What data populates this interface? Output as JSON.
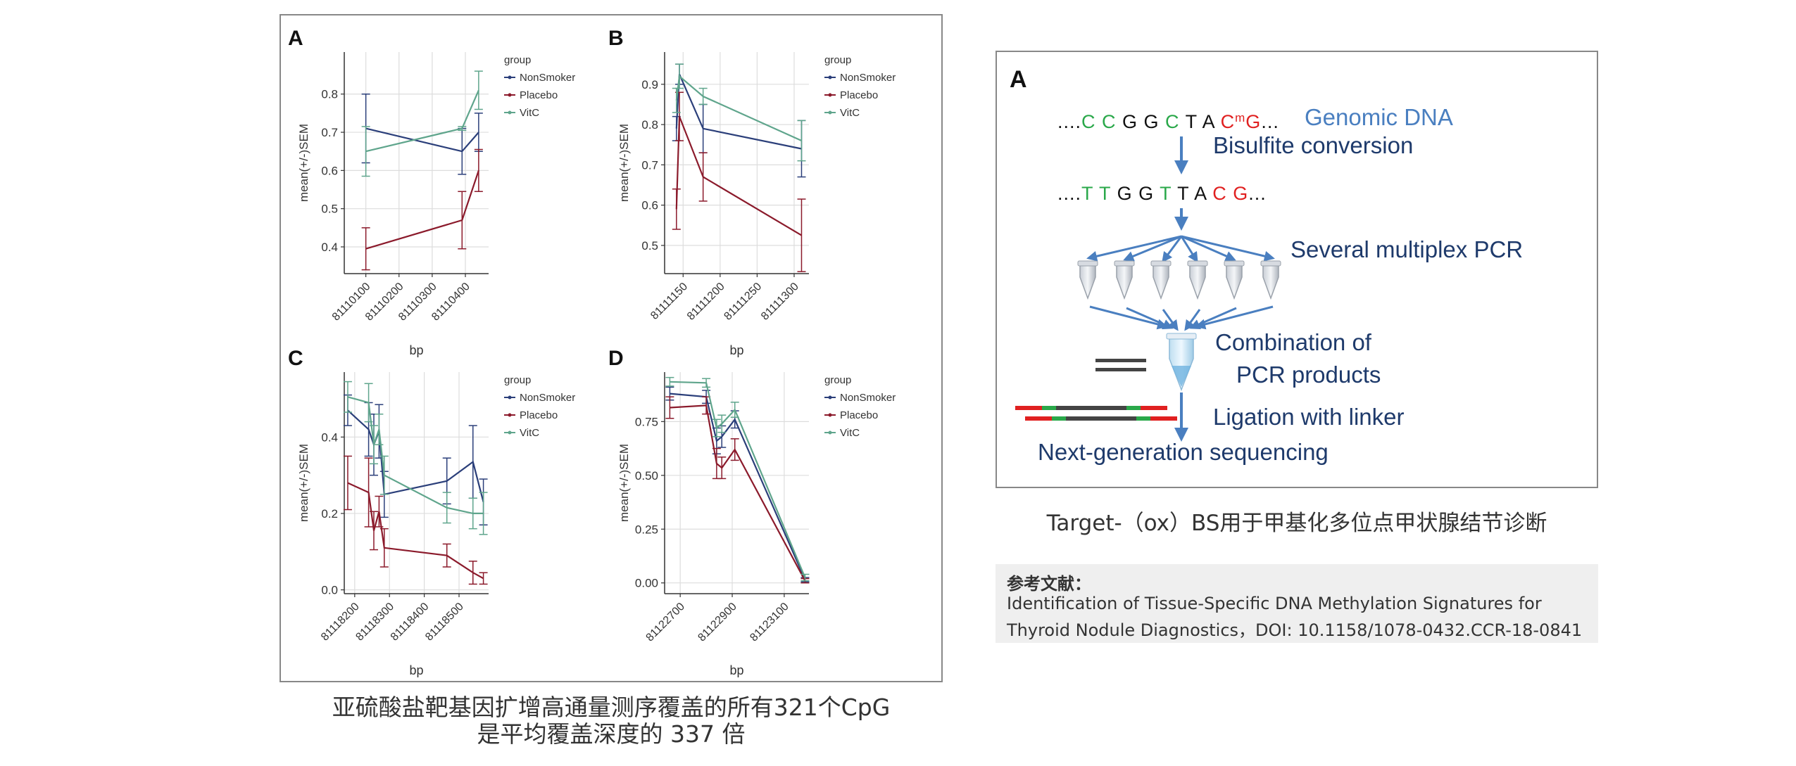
{
  "left_caption": {
    "line1": "亚硫酸盐靶基因扩增高通量测序覆盖的所有321个CpG",
    "line2": "是平均覆盖深度的 337 倍"
  },
  "right_caption": "Target-（ox）BS用于甲基化多位点甲状腺结节诊断",
  "reference": {
    "heading": "参考文献：",
    "line1": "Identification of Tissue-Specific DNA Methylation Signatures for",
    "line2": "Thyroid Nodule Diagnostics，DOI: 10.1158/1078-0432.CCR-18-0841"
  },
  "workflow": {
    "panel_letter": "A",
    "genomic_label": "Genomic DNA",
    "bisulfite_label": "Bisulfite conversion",
    "multiplex_label": "Several multiplex PCR",
    "combination_line1": "Combination of",
    "combination_line2": "PCR products",
    "ligation_label": "Ligation with linker",
    "ngs_label": "Next-generation sequencing",
    "seq1": [
      {
        "t": "....",
        "c": "#111111"
      },
      {
        "t": "C ",
        "c": "#2aa84a"
      },
      {
        "t": "C ",
        "c": "#2aa84a"
      },
      {
        "t": "G ",
        "c": "#111111"
      },
      {
        "t": "G ",
        "c": "#111111"
      },
      {
        "t": "C ",
        "c": "#2aa84a"
      },
      {
        "t": "T ",
        "c": "#111111"
      },
      {
        "t": "A ",
        "c": "#111111"
      },
      {
        "t": "CmG",
        "c": "#e02020"
      },
      {
        "t": "...",
        "c": "#111111"
      }
    ],
    "seq2": [
      {
        "t": "....",
        "c": "#111111"
      },
      {
        "t": "T ",
        "c": "#2aa84a"
      },
      {
        "t": "T ",
        "c": "#2aa84a"
      },
      {
        "t": "G ",
        "c": "#111111"
      },
      {
        "t": "G ",
        "c": "#111111"
      },
      {
        "t": "T ",
        "c": "#2aa84a"
      },
      {
        "t": "T ",
        "c": "#111111"
      },
      {
        "t": "A ",
        "c": "#111111"
      },
      {
        "t": "C ",
        "c": "#e02020"
      },
      {
        "t": "G",
        "c": "#e02020"
      },
      {
        "t": "...",
        "c": "#111111"
      }
    ]
  },
  "chart_data": [
    {
      "type": "line",
      "panel": "A",
      "xlabel": "bp",
      "ylabel": "mean(+/-)SEM",
      "xlim": [
        81110035,
        81110470
      ],
      "ylim": [
        0.33,
        0.91
      ],
      "xticks": [
        81110100,
        81110200,
        81110300,
        81110400
      ],
      "yticks": [
        0.4,
        0.5,
        0.6,
        0.7,
        0.8
      ],
      "ytick_labels": [
        "0.4",
        "0.5",
        "0.6",
        "0.7",
        "0.8"
      ],
      "legend": {
        "title": "group",
        "placement": "top-right"
      },
      "series": [
        {
          "name": "NonSmoker",
          "color": "#2b3f7a",
          "points": [
            [
              81110100,
              0.71,
              0.09
            ],
            [
              81110390,
              0.65,
              0.06
            ],
            [
              81110440,
              0.7,
              0.05
            ]
          ]
        },
        {
          "name": "Placebo",
          "color": "#8b1a2b",
          "points": [
            [
              81110100,
              0.395,
              0.055
            ],
            [
              81110390,
              0.47,
              0.075
            ],
            [
              81110440,
              0.6,
              0.055
            ]
          ]
        },
        {
          "name": "VitC",
          "color": "#5fa58c",
          "points": [
            [
              81110100,
              0.65,
              0.065
            ],
            [
              81110390,
              0.71,
              0.005
            ],
            [
              81110440,
              0.81,
              0.05
            ]
          ]
        }
      ]
    },
    {
      "type": "line",
      "panel": "B",
      "xlabel": "bp",
      "ylabel": "mean(+/-)SEM",
      "xlim": [
        81111125,
        81111320
      ],
      "ylim": [
        0.43,
        0.98
      ],
      "xticks": [
        81111150,
        81111200,
        81111250,
        81111300
      ],
      "yticks": [
        0.5,
        0.6,
        0.7,
        0.8,
        0.9
      ],
      "ytick_labels": [
        "0.5",
        "0.6",
        "0.7",
        "0.8",
        "0.9"
      ],
      "legend": {
        "title": "group",
        "placement": "top-right"
      },
      "series": [
        {
          "name": "NonSmoker",
          "color": "#2b3f7a",
          "points": [
            [
              81111141,
              0.79,
              0.03
            ],
            [
              81111145,
              0.925,
              0.025
            ],
            [
              81111177,
              0.79,
              0.06
            ],
            [
              81111310,
              0.74,
              0.07
            ]
          ]
        },
        {
          "name": "Placebo",
          "color": "#8b1a2b",
          "points": [
            [
              81111141,
              0.59,
              0.05
            ],
            [
              81111145,
              0.82,
              0.06
            ],
            [
              81111177,
              0.67,
              0.06
            ],
            [
              81111310,
              0.525,
              0.09
            ]
          ]
        },
        {
          "name": "VitC",
          "color": "#5fa58c",
          "points": [
            [
              81111141,
              0.86,
              0.03
            ],
            [
              81111145,
              0.92,
              0.03
            ],
            [
              81111177,
              0.87,
              0.02
            ],
            [
              81111310,
              0.76,
              0.05
            ]
          ]
        }
      ]
    },
    {
      "type": "line",
      "panel": "C",
      "xlabel": "bp",
      "ylabel": "mean(+/-)SEM",
      "xlim": [
        81118170,
        81118585
      ],
      "ylim": [
        -0.01,
        0.57
      ],
      "xticks": [
        81118200,
        81118300,
        81118400,
        81118500
      ],
      "yticks": [
        0.0,
        0.2,
        0.4
      ],
      "ytick_labels": [
        "0.0",
        "0.2",
        "0.4"
      ],
      "legend": {
        "title": "group",
        "placement": "top-right"
      },
      "series": [
        {
          "name": "NonSmoker",
          "color": "#2b3f7a",
          "points": [
            [
              81118180,
              0.47,
              0.04
            ],
            [
              81118240,
              0.42,
              0.07
            ],
            [
              81118255,
              0.38,
              0.08
            ],
            [
              81118270,
              0.415,
              0.07
            ],
            [
              81118285,
              0.25,
              0.06
            ],
            [
              81118465,
              0.285,
              0.06
            ],
            [
              81118540,
              0.335,
              0.095
            ],
            [
              81118570,
              0.23,
              0.06
            ]
          ]
        },
        {
          "name": "Placebo",
          "color": "#8b1a2b",
          "points": [
            [
              81118180,
              0.28,
              0.07
            ],
            [
              81118240,
              0.255,
              0.09
            ],
            [
              81118255,
              0.155,
              0.05
            ],
            [
              81118270,
              0.205,
              0.04
            ],
            [
              81118285,
              0.11,
              0.05
            ],
            [
              81118465,
              0.09,
              0.03
            ],
            [
              81118540,
              0.045,
              0.03
            ],
            [
              81118570,
              0.03,
              0.015
            ]
          ]
        },
        {
          "name": "VitC",
          "color": "#5fa58c",
          "points": [
            [
              81118180,
              0.505,
              0.04
            ],
            [
              81118240,
              0.49,
              0.05
            ],
            [
              81118255,
              0.38,
              0.05
            ],
            [
              81118270,
              0.42,
              0.04
            ],
            [
              81118285,
              0.3,
              0.05
            ],
            [
              81118465,
              0.215,
              0.04
            ],
            [
              81118540,
              0.2,
              0.04
            ],
            [
              81118570,
              0.2,
              0.055
            ]
          ]
        }
      ]
    },
    {
      "type": "line",
      "panel": "D",
      "xlabel": "bp",
      "ylabel": "mean(+/-)SEM",
      "xlim": [
        81122640,
        81123195
      ],
      "ylim": [
        -0.05,
        0.98
      ],
      "xticks": [
        81122700,
        81122900,
        81123100
      ],
      "yticks": [
        0.0,
        0.25,
        0.5,
        0.75
      ],
      "ytick_labels": [
        "0.00",
        "0.25",
        "0.50",
        "0.75"
      ],
      "legend": {
        "title": "group",
        "placement": "top-right"
      },
      "series": [
        {
          "name": "NonSmoker",
          "color": "#2b3f7a",
          "points": [
            [
              81122660,
              0.88,
              0.03
            ],
            [
              81122800,
              0.865,
              0.03
            ],
            [
              81122840,
              0.66,
              0.06
            ],
            [
              81122860,
              0.68,
              0.05
            ],
            [
              81122910,
              0.76,
              0.04
            ],
            [
              81123180,
              0.015,
              0.01
            ]
          ]
        },
        {
          "name": "Placebo",
          "color": "#8b1a2b",
          "points": [
            [
              81122660,
              0.815,
              0.05
            ],
            [
              81122800,
              0.825,
              0.04
            ],
            [
              81122840,
              0.555,
              0.07
            ],
            [
              81122860,
              0.535,
              0.05
            ],
            [
              81122910,
              0.62,
              0.05
            ],
            [
              81123180,
              0.01,
              0.01
            ]
          ]
        },
        {
          "name": "VitC",
          "color": "#5fa58c",
          "points": [
            [
              81122660,
              0.935,
              0.02
            ],
            [
              81122800,
              0.93,
              0.02
            ],
            [
              81122840,
              0.72,
              0.04
            ],
            [
              81122860,
              0.74,
              0.04
            ],
            [
              81122910,
              0.805,
              0.035
            ],
            [
              81123180,
              0.025,
              0.015
            ]
          ]
        }
      ]
    }
  ]
}
